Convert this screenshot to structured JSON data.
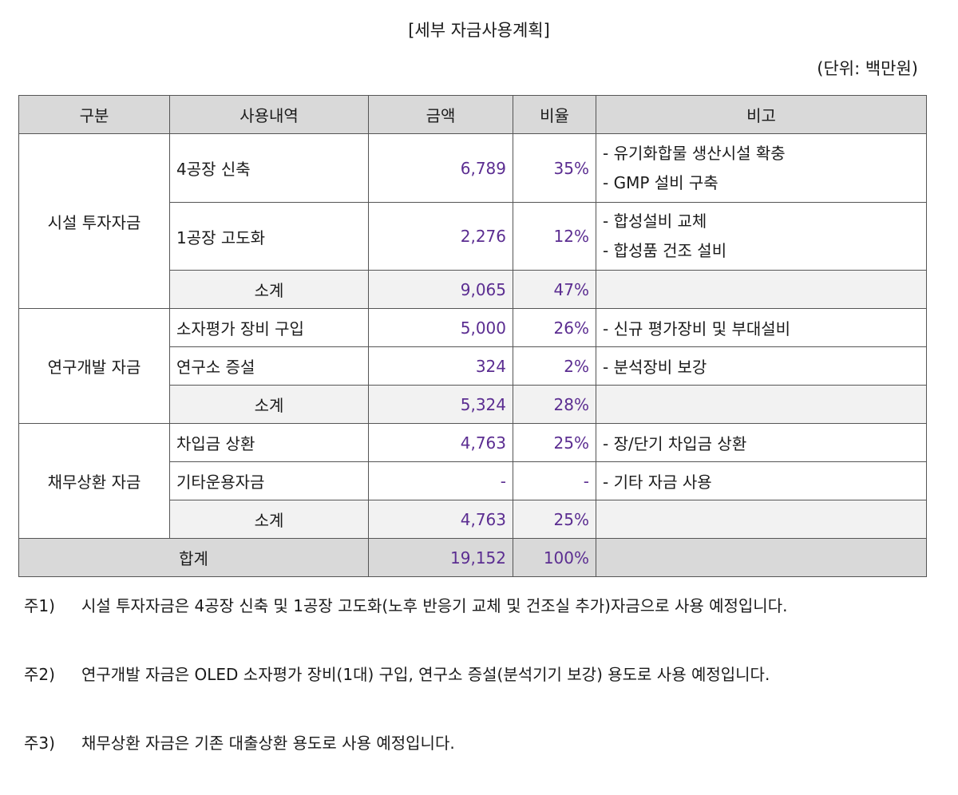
{
  "title": "[세부 자금사용계획]",
  "unit": "(단위: 백만원)",
  "headers": [
    "구분",
    "사용내역",
    "금액",
    "비율",
    "비고"
  ],
  "groups": [
    {
      "category": "시설 투자자금",
      "rows": [
        {
          "item": "4공장 신축",
          "amount": "6,789",
          "ratio": "35%",
          "remarks": [
            "- 유기화합물 생산시설 확충",
            "- GMP 설비 구축"
          ]
        },
        {
          "item": "1공장 고도화",
          "amount": "2,276",
          "ratio": "12%",
          "remarks": [
            "- 합성설비 교체",
            "- 합성품 건조 설비"
          ]
        }
      ],
      "subtotal": {
        "label": "소계",
        "amount": "9,065",
        "ratio": "47%"
      }
    },
    {
      "category": "연구개발 자금",
      "rows": [
        {
          "item": "소자평가 장비 구입",
          "amount": "5,000",
          "ratio": "26%",
          "remarks": [
            "- 신규 평가장비 및 부대설비"
          ]
        },
        {
          "item": "연구소 증설",
          "amount": "324",
          "ratio": "2%",
          "remarks": [
            "- 분석장비 보강"
          ]
        }
      ],
      "subtotal": {
        "label": "소계",
        "amount": "5,324",
        "ratio": "28%"
      }
    },
    {
      "category": "채무상환 자금",
      "rows": [
        {
          "item": "차입금 상환",
          "amount": "4,763",
          "ratio": "25%",
          "remarks": [
            "- 장/단기 차입금 상환"
          ]
        },
        {
          "item": "기타운용자금",
          "amount": "-",
          "ratio": "-",
          "remarks": [
            "- 기타 자금 사용"
          ]
        }
      ],
      "subtotal": {
        "label": "소계",
        "amount": "4,763",
        "ratio": "25%"
      }
    }
  ],
  "total": {
    "label": "합계",
    "amount": "19,152",
    "ratio": "100%"
  },
  "notes": [
    {
      "label": "주1)",
      "text": "시설 투자자금은 4공장 신축 및 1공장 고도화(노후 반응기 교체 및 건조실 추가)자금으로 사용 예정입니다."
    },
    {
      "label": "주2)",
      "text": "연구개발 자금은 OLED 소자평가 장비(1대) 구입, 연구소 증설(분석기기 보강) 용도로 사용 예정입니다."
    },
    {
      "label": "주3)",
      "text": "채무상환 자금은 기존 대출상환 용도로 사용 예정입니다."
    }
  ],
  "colors": {
    "number": "#5b2d91",
    "header_bg": "#d9d9d9",
    "subtotal_bg": "#f2f2f2"
  }
}
